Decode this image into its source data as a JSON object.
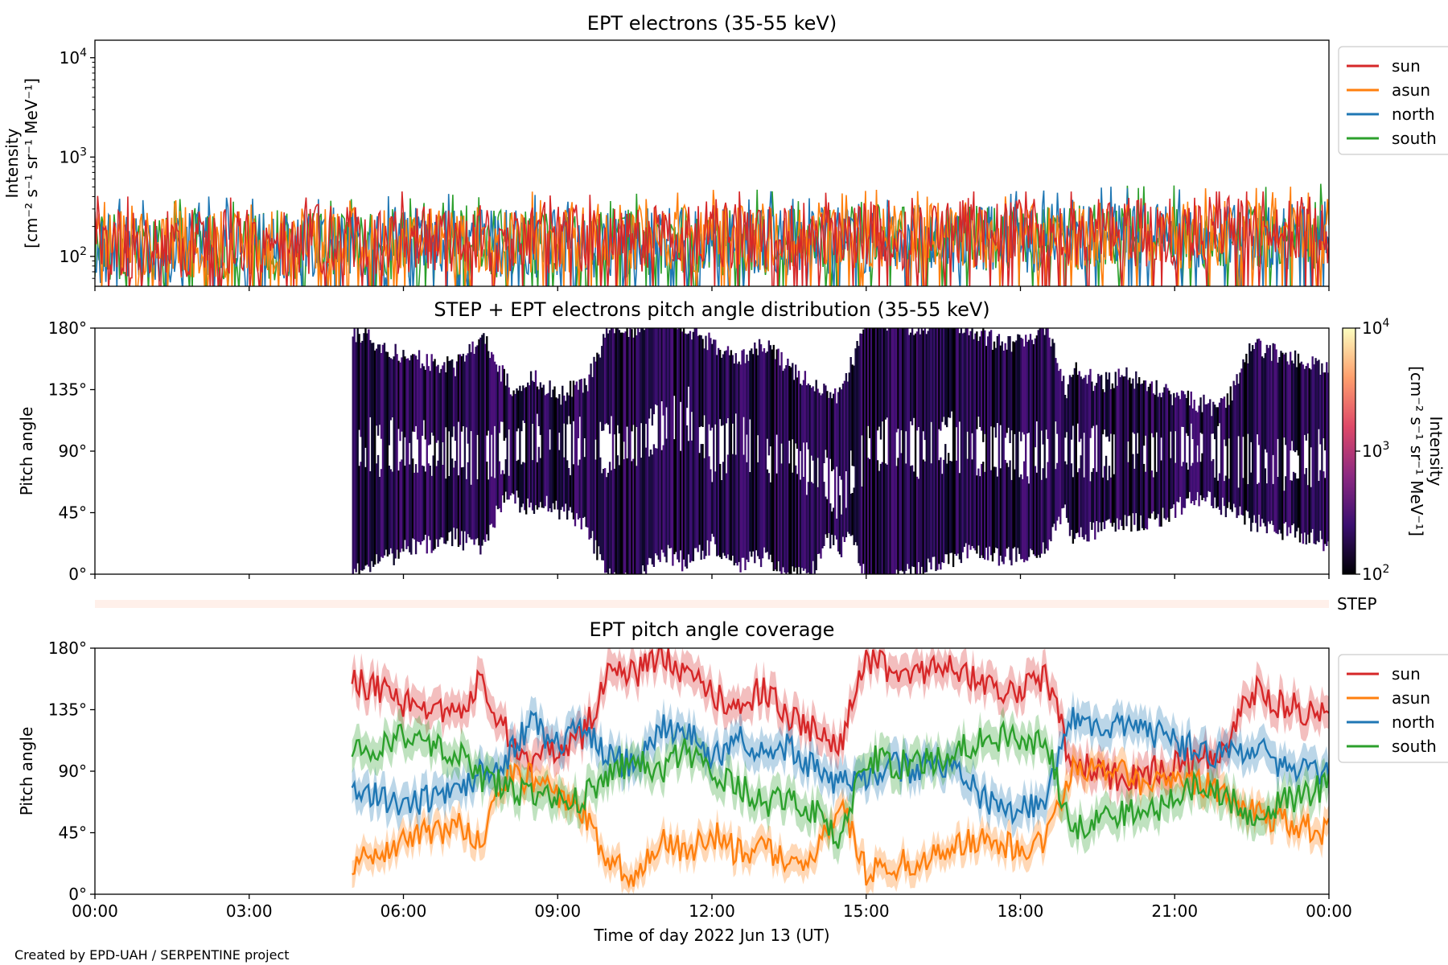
{
  "figure": {
    "xlabel": "Time of day 2022 Jun 13 (UT)",
    "credit": "Created by EPD-UAH / SERPENTINE project",
    "x_ticks": [
      "00:00",
      "03:00",
      "06:00",
      "09:00",
      "12:00",
      "15:00",
      "18:00",
      "21:00",
      "00:00"
    ],
    "x_range_hours": [
      0,
      24
    ]
  },
  "colors": {
    "sun": "#d62728",
    "asun": "#ff7f0e",
    "north": "#1f77b4",
    "south": "#2ca02c",
    "step_bar": "#fff0ea"
  },
  "chart_data": [
    {
      "type": "line",
      "title": "EPT electrons (35-55 keV)",
      "ylabel_line1": "Intensity",
      "ylabel_line2": "[cm⁻² s⁻¹ sr⁻¹ MeV⁻¹]",
      "y_scale": "log",
      "ylim": [
        50,
        15000
      ],
      "y_ticks": [
        {
          "value": 100,
          "base": "10",
          "exp": "2"
        },
        {
          "value": 1000,
          "base": "10",
          "exp": "3"
        },
        {
          "value": 10000,
          "base": "10",
          "exp": "4"
        }
      ],
      "legend_position": "outside-right",
      "series": [
        {
          "name": "sun",
          "color": "#d62728",
          "baseline_start": 120,
          "baseline_end": 170,
          "peak_max": 450
        },
        {
          "name": "asun",
          "color": "#ff7f0e",
          "baseline_start": 120,
          "baseline_end": 160,
          "peak_max": 760
        },
        {
          "name": "north",
          "color": "#1f77b4",
          "baseline_start": 110,
          "baseline_end": 150,
          "peak_max": 600
        },
        {
          "name": "south",
          "color": "#2ca02c",
          "baseline_start": 110,
          "baseline_end": 150,
          "peak_max": 640
        }
      ]
    },
    {
      "type": "heatmap",
      "title": "STEP + EPT electrons pitch angle distribution (35-55 keV)",
      "ylabel": "Pitch angle",
      "ylim": [
        0,
        180
      ],
      "y_ticks": [
        "0°",
        "45°",
        "90°",
        "135°",
        "180°"
      ],
      "data_start_hour": 5.0,
      "colorbar": {
        "label_line1": "Intensity",
        "label_line2": "[cm⁻² s⁻¹ sr⁻¹ MeV⁻¹]",
        "scale": "log",
        "range": [
          100,
          10000
        ],
        "ticks": [
          {
            "value": 100,
            "base": "10",
            "exp": "2"
          },
          {
            "value": 1000,
            "base": "10",
            "exp": "3"
          },
          {
            "value": 10000,
            "base": "10",
            "exp": "4"
          }
        ],
        "colors": [
          "#000004",
          "#3b0f70",
          "#8c2981",
          "#de4968",
          "#fe9f6d",
          "#fcfdbf"
        ]
      },
      "step_label": "STEP"
    },
    {
      "type": "line",
      "title": "EPT pitch angle coverage",
      "ylabel": "Pitch angle",
      "ylim": [
        0,
        180
      ],
      "y_ticks": [
        "0°",
        "45°",
        "90°",
        "135°",
        "180°"
      ],
      "legend_position": "outside-right",
      "x": [
        5,
        6,
        7,
        7.5,
        8,
        8.5,
        9,
        9.5,
        10,
        10.5,
        11,
        11.5,
        12,
        12.5,
        13,
        13.5,
        14,
        14.5,
        15,
        15.5,
        16,
        16.5,
        17,
        17.5,
        18,
        18.5,
        19,
        19.5,
        20,
        20.5,
        21,
        21.5,
        22,
        22.5,
        23,
        24
      ],
      "series": [
        {
          "name": "sun",
          "color": "#d62728",
          "half_width": 12,
          "values": [
            158,
            140,
            132,
            155,
            120,
            95,
            105,
            115,
            165,
            160,
            175,
            160,
            148,
            138,
            150,
            130,
            120,
            110,
            170,
            165,
            160,
            170,
            160,
            150,
            150,
            160,
            95,
            90,
            85,
            90,
            95,
            100,
            105,
            150,
            140,
            130
          ]
        },
        {
          "name": "asun",
          "color": "#ff7f0e",
          "half_width": 10,
          "values": [
            22,
            40,
            50,
            40,
            85,
            85,
            70,
            60,
            20,
            15,
            40,
            30,
            45,
            30,
            35,
            20,
            30,
            70,
            15,
            20,
            25,
            30,
            40,
            35,
            35,
            40,
            90,
            95,
            90,
            80,
            85,
            80,
            75,
            60,
            55,
            45
          ]
        },
        {
          "name": "north",
          "color": "#1f77b4",
          "half_width": 12,
          "values": [
            80,
            65,
            75,
            90,
            100,
            125,
            110,
            120,
            100,
            95,
            120,
            125,
            95,
            120,
            100,
            110,
            90,
            80,
            85,
            95,
            90,
            95,
            80,
            65,
            60,
            70,
            130,
            120,
            125,
            120,
            110,
            105,
            100,
            110,
            95,
            90
          ]
        },
        {
          "name": "south",
          "color": "#2ca02c",
          "half_width": 12,
          "values": [
            100,
            118,
            105,
            85,
            80,
            70,
            75,
            70,
            85,
            100,
            90,
            105,
            85,
            80,
            65,
            70,
            60,
            40,
            100,
            95,
            95,
            100,
            110,
            115,
            115,
            110,
            50,
            55,
            60,
            60,
            70,
            80,
            70,
            60,
            65,
            80
          ]
        }
      ]
    }
  ]
}
